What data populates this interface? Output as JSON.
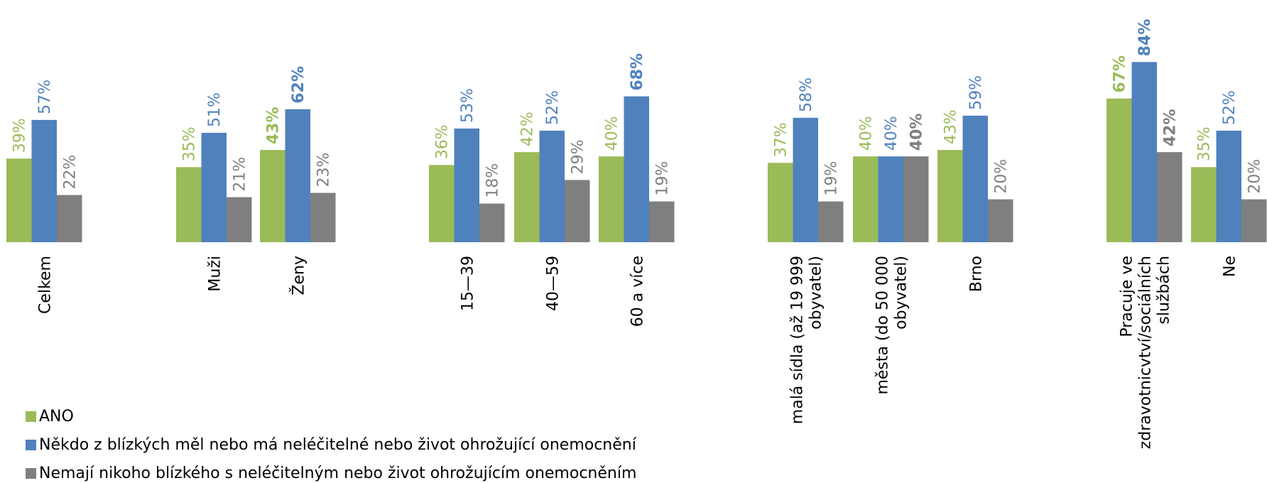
{
  "chart_data": {
    "type": "bar",
    "categories": [
      "Celkem",
      "Muži",
      "Ženy",
      "15—39",
      "40—59",
      "60 a více",
      "malá sídla (až 19 999\nobyvatel)",
      "města (do 50 000\nobyvatel)",
      "Brno",
      "Pracuje ve\nzdravotnicvtví/sociálních\nslužbách",
      "Ne"
    ],
    "ylim": [
      0,
      100
    ],
    "legend": "bottom-left",
    "series": [
      {
        "name": "ANO",
        "color": "#9bbb59",
        "values": [
          39,
          35,
          43,
          36,
          42,
          40,
          37,
          40,
          43,
          67,
          35
        ],
        "value_labels": [
          "39%",
          "35%",
          "43%",
          "36%",
          "42%",
          "40%",
          "37%",
          "40%",
          "43%",
          "67%",
          "35%"
        ],
        "bold": [
          2,
          9
        ]
      },
      {
        "name": "Někdo z blízkých měl nebo má neléčitelné nebo život ohrožující onemocnění",
        "color": "#4f81bd",
        "values": [
          57,
          51,
          62,
          53,
          52,
          68,
          58,
          40,
          59,
          84,
          52
        ],
        "value_labels": [
          "57%",
          "51%",
          "62%",
          "53%",
          "52%",
          "68%",
          "58%",
          "40%",
          "59%",
          "84%",
          "52%"
        ],
        "bold": [
          2,
          5,
          9
        ]
      },
      {
        "name": "Nemají nikoho blízkého s neléčitelným nebo život ohrožujícím onemocněním",
        "color": "#7f7f7f",
        "values": [
          22,
          21,
          23,
          18,
          29,
          19,
          19,
          40,
          20,
          42,
          20
        ],
        "value_labels": [
          "22%",
          "21%",
          "23%",
          "18%",
          "29%",
          "19%",
          "19%",
          "40%",
          "20%",
          "42%",
          "20%"
        ],
        "bold": [
          7,
          9
        ]
      }
    ]
  }
}
